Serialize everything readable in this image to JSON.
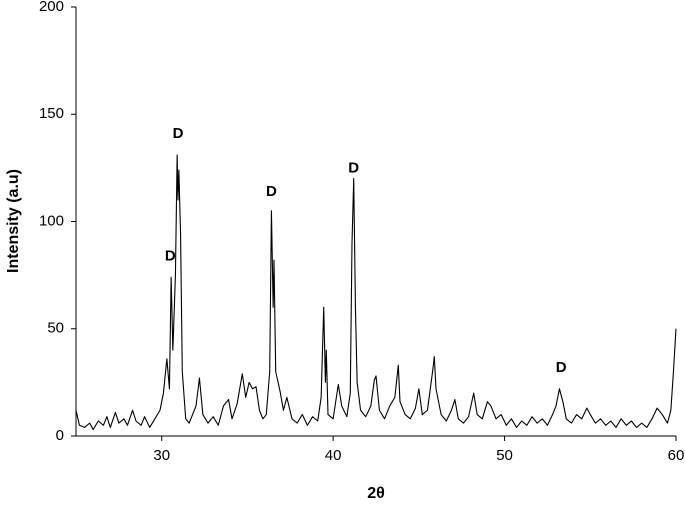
{
  "chart_data": {
    "type": "line",
    "xlabel": "2θ",
    "ylabel": "Intensity (a.u)",
    "color": "#000000",
    "xlim": [
      25,
      60
    ],
    "xticks": [
      30,
      40,
      50,
      60
    ],
    "ylim": [
      0,
      200
    ],
    "yticks": [
      0,
      50,
      100,
      150,
      200
    ],
    "x": [
      25.0,
      25.2,
      25.5,
      25.8,
      26.0,
      26.3,
      26.6,
      26.8,
      27.0,
      27.3,
      27.5,
      27.8,
      28.0,
      28.3,
      28.5,
      28.8,
      29.0,
      29.3,
      29.6,
      29.9,
      30.1,
      30.3,
      30.45,
      30.55,
      30.65,
      30.8,
      30.9,
      30.95,
      31.0,
      31.1,
      31.2,
      31.4,
      31.6,
      31.8,
      32.0,
      32.2,
      32.4,
      32.7,
      33.0,
      33.3,
      33.6,
      33.9,
      34.1,
      34.4,
      34.7,
      34.9,
      35.1,
      35.3,
      35.5,
      35.7,
      35.9,
      36.1,
      36.3,
      36.4,
      36.5,
      36.55,
      36.65,
      36.9,
      37.1,
      37.3,
      37.6,
      37.9,
      38.2,
      38.5,
      38.8,
      39.1,
      39.3,
      39.45,
      39.55,
      39.6,
      39.7,
      40.0,
      40.3,
      40.5,
      40.8,
      41.0,
      41.1,
      41.2,
      41.3,
      41.4,
      41.6,
      41.9,
      42.2,
      42.4,
      42.5,
      42.7,
      43.0,
      43.3,
      43.6,
      43.8,
      43.9,
      44.2,
      44.5,
      44.8,
      45.0,
      45.2,
      45.5,
      45.8,
      45.9,
      46.0,
      46.3,
      46.6,
      46.9,
      47.1,
      47.3,
      47.6,
      47.9,
      48.2,
      48.4,
      48.7,
      49.0,
      49.2,
      49.5,
      49.8,
      50.1,
      50.4,
      50.7,
      51.0,
      51.3,
      51.6,
      51.9,
      52.2,
      52.5,
      52.8,
      53.0,
      53.2,
      53.4,
      53.6,
      53.9,
      54.2,
      54.5,
      54.8,
      55.0,
      55.3,
      55.6,
      55.9,
      56.2,
      56.5,
      56.8,
      57.1,
      57.4,
      57.7,
      58.0,
      58.3,
      58.6,
      58.9,
      59.2,
      59.5,
      59.7,
      59.85,
      60.0
    ],
    "values": [
      12,
      5,
      4,
      6,
      3,
      7,
      5,
      9,
      4,
      11,
      6,
      8,
      5,
      12,
      7,
      5,
      9,
      4,
      8,
      12,
      20,
      36,
      22,
      74,
      40,
      75,
      131,
      110,
      124,
      94,
      30,
      8,
      6,
      10,
      14,
      27,
      10,
      6,
      9,
      5,
      14,
      17,
      8,
      15,
      29,
      18,
      25,
      22,
      23,
      12,
      8,
      10,
      30,
      105,
      60,
      82,
      30,
      21,
      12,
      18,
      8,
      6,
      10,
      5,
      9,
      7,
      18,
      60,
      25,
      40,
      10,
      8,
      24,
      14,
      9,
      20,
      90,
      120,
      60,
      25,
      12,
      9,
      14,
      26,
      28,
      12,
      8,
      14,
      18,
      33,
      16,
      10,
      8,
      13,
      22,
      10,
      12,
      30,
      37,
      22,
      10,
      7,
      12,
      17,
      8,
      6,
      9,
      20,
      10,
      8,
      16,
      14,
      8,
      10,
      5,
      8,
      4,
      7,
      5,
      9,
      6,
      8,
      5,
      10,
      14,
      22,
      16,
      8,
      6,
      10,
      8,
      13,
      10,
      6,
      8,
      5,
      7,
      4,
      8,
      5,
      7,
      4,
      6,
      4,
      8,
      13,
      10,
      6,
      12,
      30,
      50
    ],
    "annotations": [
      {
        "text": "D",
        "x": 30.5,
        "y": 80
      },
      {
        "text": "D",
        "x": 30.95,
        "y": 137
      },
      {
        "text": "D",
        "x": 36.4,
        "y": 110
      },
      {
        "text": "D",
        "x": 41.2,
        "y": 121
      },
      {
        "text": "D",
        "x": 53.3,
        "y": 28
      }
    ]
  }
}
